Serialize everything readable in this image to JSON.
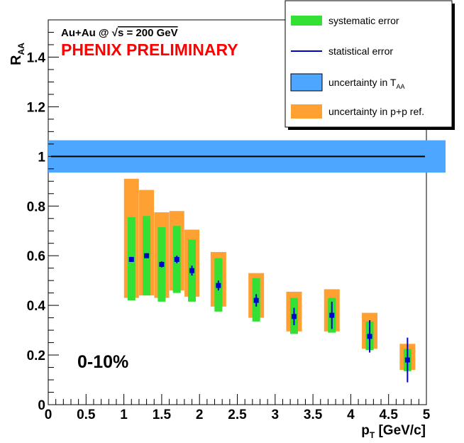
{
  "chart_data": {
    "type": "scatter",
    "collision_label": "Au+Au @ √s = 200 GeV",
    "collision_prefix": "Au+Au @ ",
    "collision_sqrt": "√",
    "collision_suffix": "s = 200 GeV",
    "watermark": "PHENIX PRELIMINARY",
    "centrality": "0-10%",
    "xlabel": "p_T [GeV/c]",
    "xlabel_main": "p",
    "xlabel_sub": "T",
    "xlabel_rest": " [GeV/c]",
    "ylabel": "R_AA",
    "ylabel_main": "R",
    "ylabel_sub": "AA",
    "xlim": [
      0,
      5
    ],
    "ylim": [
      0,
      1.55
    ],
    "x_ticks": [
      "0",
      "0.5",
      "1",
      "1.5",
      "2",
      "2.5",
      "3",
      "3.5",
      "4",
      "4.5",
      "5"
    ],
    "y_ticks": [
      "0",
      "0.2",
      "0.4",
      "0.6",
      "0.8",
      "1",
      "1.2",
      "1.4"
    ],
    "reference_line": 1.0,
    "taa_band": [
      0.935,
      1.065
    ],
    "legend": [
      {
        "label": "systematic error",
        "color": "#33e033"
      },
      {
        "label": "statistical error",
        "color": "#0000cc"
      },
      {
        "label": "uncertainty in T",
        "sub": "AA",
        "color": "#4da6ff"
      },
      {
        "label": "uncertainty in p+p ref.",
        "color": "#ffa033"
      }
    ],
    "points": [
      {
        "x": 1.1,
        "y": 0.585,
        "stat": 0.01,
        "sys": [
          0.42,
          0.755
        ],
        "pp": [
          0.43,
          0.91
        ]
      },
      {
        "x": 1.3,
        "y": 0.6,
        "stat": 0.01,
        "sys": [
          0.44,
          0.76
        ],
        "pp": [
          0.44,
          0.865
        ]
      },
      {
        "x": 1.5,
        "y": 0.565,
        "stat": 0.012,
        "sys": [
          0.415,
          0.715
        ],
        "pp": [
          0.43,
          0.775
        ]
      },
      {
        "x": 1.7,
        "y": 0.585,
        "stat": 0.015,
        "sys": [
          0.45,
          0.72
        ],
        "pp": [
          0.46,
          0.78
        ]
      },
      {
        "x": 1.9,
        "y": 0.54,
        "stat": 0.02,
        "sys": [
          0.415,
          0.665
        ],
        "pp": [
          0.435,
          0.705
        ]
      },
      {
        "x": 2.25,
        "y": 0.48,
        "stat": 0.02,
        "sys": [
          0.375,
          0.59
        ],
        "pp": [
          0.395,
          0.615
        ]
      },
      {
        "x": 2.75,
        "y": 0.42,
        "stat": 0.025,
        "sys": [
          0.335,
          0.51
        ],
        "pp": [
          0.35,
          0.53
        ]
      },
      {
        "x": 3.25,
        "y": 0.355,
        "stat": 0.035,
        "sys": [
          0.285,
          0.43
        ],
        "pp": [
          0.295,
          0.455
        ]
      },
      {
        "x": 3.75,
        "y": 0.36,
        "stat": 0.055,
        "sys": [
          0.29,
          0.43
        ],
        "pp": [
          0.295,
          0.465
        ]
      },
      {
        "x": 4.25,
        "y": 0.275,
        "stat": 0.065,
        "sys": [
          0.22,
          0.335
        ],
        "pp": [
          0.225,
          0.37
        ]
      },
      {
        "x": 4.75,
        "y": 0.18,
        "stat": 0.09,
        "sys": [
          0.135,
          0.225
        ],
        "pp": [
          0.14,
          0.245
        ]
      }
    ]
  }
}
